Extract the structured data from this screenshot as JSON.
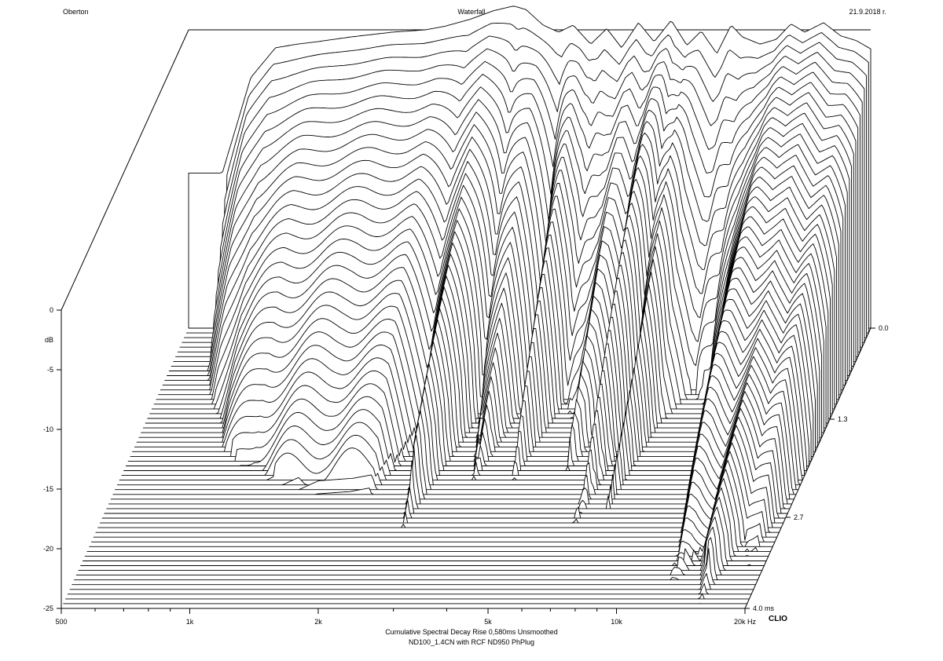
{
  "header": {
    "left": "Oberton",
    "center": "Waterfall",
    "right": "21.9.2018 r."
  },
  "footer": {
    "line1": "Cumulative Spectral Decay   Rise 0,580ms   Unsmoothed",
    "line2": "ND100_1.4CN with RCF ND950 PhPlug",
    "brand": "CLIO"
  },
  "chart_data": {
    "type": "waterfall",
    "title": "Waterfall",
    "xlabel": "Hz",
    "ylabel": "dB",
    "zlabel": "ms",
    "x_scale": "log",
    "xlim": [
      500,
      20000
    ],
    "ylim": [
      -25,
      0
    ],
    "zlim": [
      0,
      4.0
    ],
    "x_ticks": [
      500,
      1000,
      2000,
      5000,
      10000,
      20000
    ],
    "x_tick_labels": [
      "500",
      "1k",
      "2k",
      "5k",
      "10k",
      "20k"
    ],
    "y_ticks": [
      0,
      -5,
      -10,
      -15,
      -20,
      -25
    ],
    "y_tick_labels": [
      "0",
      "-5",
      "-10",
      "-15",
      "-20",
      "-25"
    ],
    "z_ticks": [
      0.0,
      1.3,
      2.7,
      4.0
    ],
    "z_tick_labels": [
      "0.0",
      "1.3",
      "2.7",
      "4.0"
    ],
    "slices": 60,
    "floor_db": -25,
    "initial_response": {
      "freq_hz": [
        600,
        700,
        800,
        900,
        1000,
        1200,
        1500,
        1800,
        2000,
        2300,
        2600,
        2900,
        3100,
        3400,
        3700,
        4000,
        4400,
        4800,
        5200,
        5700,
        6200,
        6800,
        7400,
        8000,
        8700,
        9400,
        10000,
        11000,
        12000,
        13000,
        14000,
        15500,
        17000,
        18500,
        20000
      ],
      "db": [
        -12,
        -4,
        -1.5,
        -1.2,
        -1,
        -0.6,
        -0.2,
        0,
        0.3,
        0.9,
        1.6,
        2.0,
        1.7,
        0.4,
        -0.2,
        0.4,
        -1.2,
        0.1,
        -1.5,
        0.6,
        -1.0,
        0.8,
        -1.3,
        -0.1,
        -2.0,
        0.4,
        -0.6,
        -1.2,
        -0.8,
        0.5,
        -0.2,
        0.6,
        -0.5,
        -0.9,
        -1.6
      ]
    },
    "decay_profile": {
      "freq_hz": [
        600,
        800,
        1000,
        1500,
        2000,
        2300,
        2600,
        3000,
        3400,
        3800,
        4200,
        4600,
        5000,
        5500,
        6000,
        6500,
        7000,
        7500,
        8000,
        9000,
        10000,
        11000,
        12500,
        14000,
        15500,
        17000,
        18500,
        20000
      ],
      "ms_to_floor": [
        0.9,
        1.7,
        2.1,
        2.3,
        2.3,
        1.6,
        2.6,
        1.1,
        2.1,
        0.9,
        2.2,
        1.0,
        1.3,
        2.0,
        1.4,
        2.8,
        1.5,
        2.6,
        1.4,
        0.9,
        1.1,
        2.0,
        3.5,
        3.2,
        3.7,
        3.0,
        3.4,
        2.2
      ]
    }
  }
}
